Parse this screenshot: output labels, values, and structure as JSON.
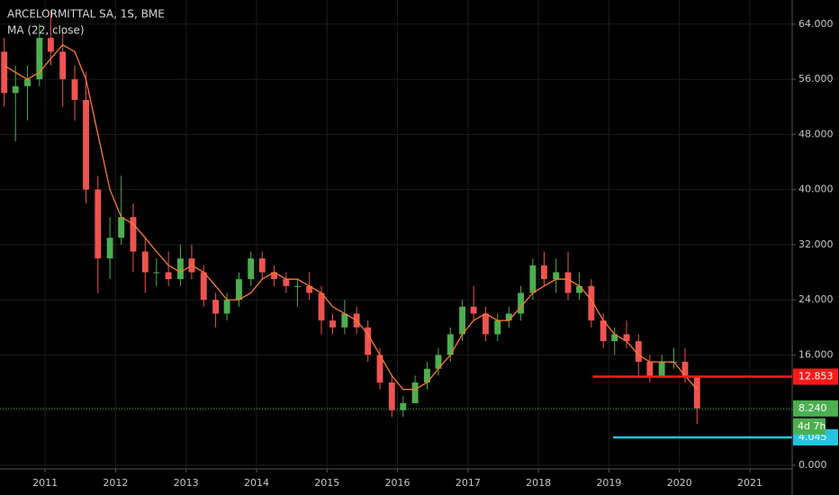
{
  "chart_data": {
    "type": "candlestick",
    "title": "ARCELORMITTAL SA, 1S, BME",
    "subtitle": "MA (22, close)",
    "x": [
      2010.42,
      2010.58,
      2010.75,
      2010.92,
      2011.08,
      2011.25,
      2011.42,
      2011.58,
      2011.75,
      2011.92,
      2012.08,
      2012.25,
      2012.42,
      2012.58,
      2012.75,
      2012.92,
      2013.08,
      2013.25,
      2013.42,
      2013.58,
      2013.75,
      2013.92,
      2014.08,
      2014.25,
      2014.42,
      2014.58,
      2014.75,
      2014.92,
      2015.08,
      2015.25,
      2015.42,
      2015.58,
      2015.75,
      2015.92,
      2016.08,
      2016.25,
      2016.42,
      2016.58,
      2016.75,
      2016.92,
      2017.08,
      2017.25,
      2017.42,
      2017.58,
      2017.75,
      2017.92,
      2018.08,
      2018.25,
      2018.42,
      2018.58,
      2018.75,
      2018.92,
      2019.08,
      2019.25,
      2019.42,
      2019.58,
      2019.75,
      2019.92,
      2020.08,
      2020.25
    ],
    "open": [
      60,
      54,
      55,
      56,
      62,
      60,
      56,
      53,
      40,
      30,
      33,
      36,
      31,
      28,
      28,
      27,
      30,
      28,
      24,
      22,
      24,
      27,
      30,
      28,
      27,
      26,
      26,
      25,
      21,
      20,
      22,
      20,
      16,
      12,
      8,
      9,
      12,
      14,
      16,
      19,
      23,
      22,
      19,
      21,
      22,
      25,
      29,
      27,
      28,
      25,
      26,
      21,
      18,
      19,
      18,
      15,
      13,
      15,
      15,
      13
    ],
    "high": [
      62,
      58,
      58,
      64,
      66,
      63,
      58,
      57,
      42,
      36,
      42,
      38,
      33,
      30,
      31,
      32,
      32,
      29,
      25,
      25,
      28,
      31,
      31,
      29,
      28,
      27,
      28,
      26,
      22,
      24,
      23,
      21,
      17,
      13,
      10,
      13,
      15,
      17,
      20,
      24,
      26,
      23,
      22,
      23,
      26,
      30,
      31,
      30,
      31,
      28,
      27,
      22,
      20,
      21,
      19,
      16,
      16,
      17,
      17,
      13
    ],
    "low": [
      52,
      47,
      50,
      55,
      58,
      52,
      50,
      38,
      25,
      27,
      32,
      28,
      25,
      26,
      26,
      26,
      27,
      23,
      20,
      21,
      23,
      26,
      27,
      26,
      25,
      23,
      24,
      19,
      19,
      19,
      19,
      15,
      11,
      7,
      7,
      9,
      11,
      13,
      15,
      18,
      21,
      18,
      18,
      20,
      21,
      24,
      26,
      25,
      24,
      24,
      20,
      17,
      16,
      17,
      13,
      12,
      13,
      14,
      12,
      6
    ],
    "close": [
      54,
      55,
      56,
      62,
      60,
      56,
      53,
      40,
      30,
      33,
      36,
      31,
      28,
      28,
      27,
      30,
      28,
      24,
      22,
      24,
      27,
      30,
      28,
      27,
      26,
      26,
      25,
      21,
      20,
      22,
      20,
      16,
      12,
      8,
      9,
      12,
      14,
      16,
      19,
      23,
      22,
      19,
      21,
      22,
      25,
      29,
      27,
      28,
      25,
      26,
      21,
      18,
      19,
      18,
      15,
      13,
      15,
      15,
      13,
      8.24
    ],
    "up_color": "#4caf50",
    "down_color": "#ef5350",
    "ma": {
      "color": "#ff7a2f",
      "values": [
        58,
        57,
        56,
        57,
        59,
        61,
        60,
        56,
        48,
        40,
        36,
        35,
        33,
        31,
        29,
        28,
        29,
        28,
        26,
        24,
        24,
        25,
        27,
        28,
        27,
        27,
        26,
        25,
        23,
        22,
        21,
        19,
        16,
        13,
        11,
        11,
        12,
        14,
        16,
        19,
        21,
        22,
        21,
        21,
        23,
        25,
        26,
        27,
        27,
        26,
        24,
        21,
        19,
        18,
        16,
        15,
        15,
        15,
        13,
        11
      ]
    },
    "levels": [
      {
        "value": 12.853,
        "color": "#ff1a1a",
        "start": 2018.77
      },
      {
        "value": 4.045,
        "color": "#22c5e0",
        "start": 2019.06
      }
    ],
    "last_price": {
      "value": 8.24,
      "value_label": "8.240",
      "color": "#4caf50",
      "countdown": "4d 7h"
    },
    "xlim": [
      2010.36,
      2021.6
    ],
    "xticks": [
      2011,
      2012,
      2013,
      2014,
      2015,
      2016,
      2017,
      2018,
      2019,
      2020,
      2021
    ],
    "ylim": [
      -0.4,
      67.5
    ],
    "yticks": [
      {
        "value": 0,
        "label": "0.000"
      },
      {
        "value": 8,
        "label": "8.000"
      },
      {
        "value": 16,
        "label": "16.000"
      },
      {
        "value": 24,
        "label": "24.000"
      },
      {
        "value": 32,
        "label": "32.000"
      },
      {
        "value": 40,
        "label": "40.000"
      },
      {
        "value": 48,
        "label": "48.000"
      },
      {
        "value": 56,
        "label": "56.000"
      },
      {
        "value": 64,
        "label": "64.000"
      }
    ],
    "grid": true
  }
}
